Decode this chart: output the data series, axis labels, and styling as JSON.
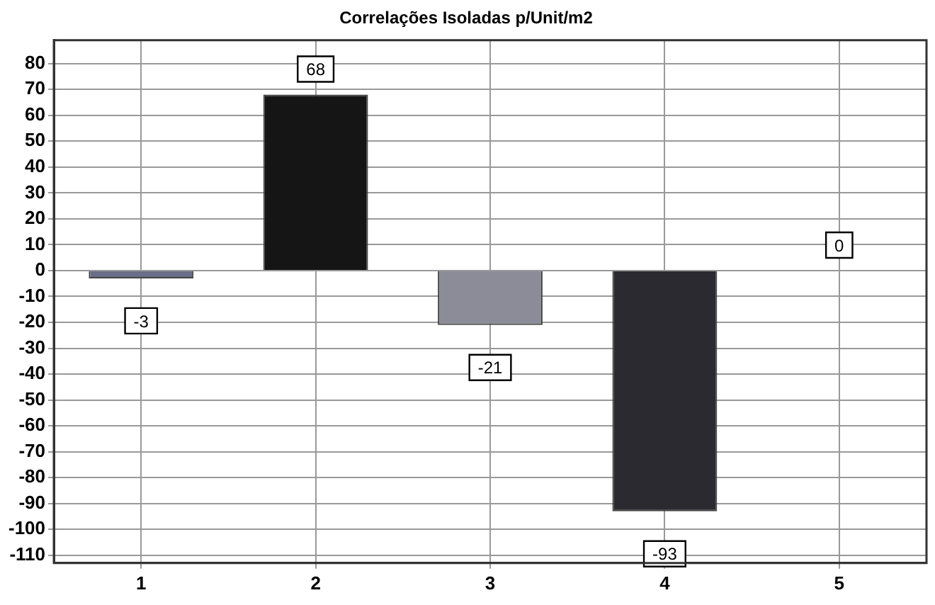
{
  "chart_data": {
    "type": "bar",
    "title": "Correlações Isoladas p/Unit/m2",
    "categories": [
      "1",
      "2",
      "3",
      "4",
      "5"
    ],
    "values": [
      -3,
      68,
      -21,
      -93,
      0
    ],
    "colors": [
      "#6a6e88",
      "#151515",
      "#8c8c98",
      "#2a2a30",
      "#2a2a30"
    ],
    "ylim": [
      -113,
      89
    ],
    "yticks": [
      -110,
      -100,
      -90,
      -80,
      -70,
      -60,
      -50,
      -40,
      -30,
      -20,
      -10,
      0,
      10,
      20,
      30,
      40,
      50,
      60,
      70,
      80
    ],
    "grid": true,
    "data_labels": true,
    "legend": false
  }
}
